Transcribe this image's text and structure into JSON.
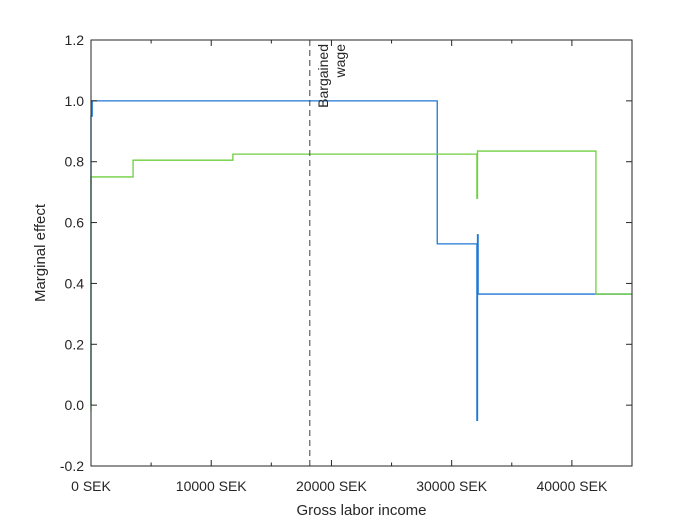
{
  "chart_data": {
    "type": "line",
    "title": "",
    "xlabel": "Gross labor income",
    "ylabel": "Marginal effect",
    "xlim": [
      0,
      45000
    ],
    "ylim": [
      -0.2,
      1.2
    ],
    "x_ticks": [
      0,
      10000,
      20000,
      30000,
      40000
    ],
    "x_tick_labels": [
      "0 SEK",
      "10000 SEK",
      "20000 SEK",
      "30000 SEK",
      "40000 SEK"
    ],
    "y_ticks": [
      -0.2,
      0.0,
      0.2,
      0.4,
      0.6,
      0.8,
      1.0,
      1.2
    ],
    "y_tick_labels": [
      "-0.2",
      "0.0",
      "0.2",
      "0.4",
      "0.6",
      "0.8",
      "1.0",
      "1.2"
    ],
    "grid": false,
    "box": true,
    "annotations": [
      {
        "type": "vline",
        "x": 18200,
        "style": "dashed",
        "color": "#404040",
        "label_lines": [
          "Bargained",
          "wage"
        ]
      }
    ],
    "series": [
      {
        "color": "#1f77d4",
        "points": [
          [
            0,
            0.0
          ],
          [
            0,
            0.95
          ],
          [
            100,
            0.95
          ],
          [
            100,
            1.0
          ],
          [
            28800,
            1.0
          ],
          [
            28800,
            0.53
          ],
          [
            32100,
            0.53
          ],
          [
            32100,
            -0.05
          ],
          [
            32150,
            -0.05
          ],
          [
            32150,
            0.56
          ],
          [
            32200,
            0.56
          ],
          [
            32200,
            0.365
          ],
          [
            42000,
            0.365
          ],
          [
            42000,
            0.365
          ],
          [
            45000,
            0.365
          ]
        ]
      },
      {
        "color": "#6fcf3f",
        "points": [
          [
            0,
            -0.02
          ],
          [
            0,
            0.75
          ],
          [
            3500,
            0.75
          ],
          [
            3500,
            0.805
          ],
          [
            11800,
            0.805
          ],
          [
            11800,
            0.825
          ],
          [
            32100,
            0.825
          ],
          [
            32100,
            0.68
          ],
          [
            32150,
            0.68
          ],
          [
            32150,
            0.835
          ],
          [
            42000,
            0.835
          ],
          [
            42000,
            0.365
          ],
          [
            45000,
            0.365
          ]
        ]
      }
    ]
  }
}
